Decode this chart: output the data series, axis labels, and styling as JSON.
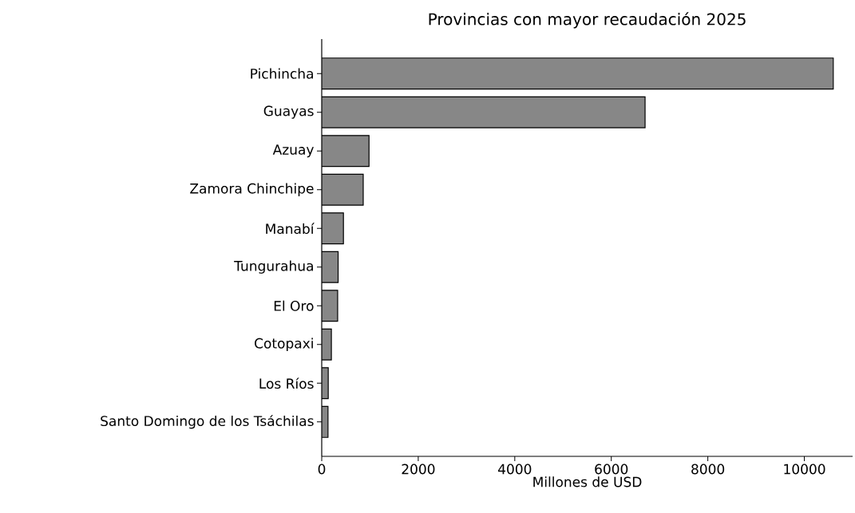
{
  "chart_data": {
    "type": "bar",
    "orientation": "horizontal",
    "title": "Provincias con mayor recaudación 2025",
    "xlabel": "Millones de USD",
    "categories": [
      "Pichincha",
      "Guayas",
      "Azuay",
      "Zamora Chinchipe",
      "Manabí",
      "Tungurahua",
      "El Oro",
      "Cotopaxi",
      "Los Ríos",
      "Santo Domingo de los Tsáchilas"
    ],
    "values": [
      10600,
      6700,
      980,
      860,
      450,
      340,
      330,
      200,
      135,
      130
    ],
    "color": "#878787",
    "xlim": [
      0,
      11000
    ],
    "xticks": [
      0,
      2000,
      4000,
      6000,
      8000,
      10000
    ]
  }
}
